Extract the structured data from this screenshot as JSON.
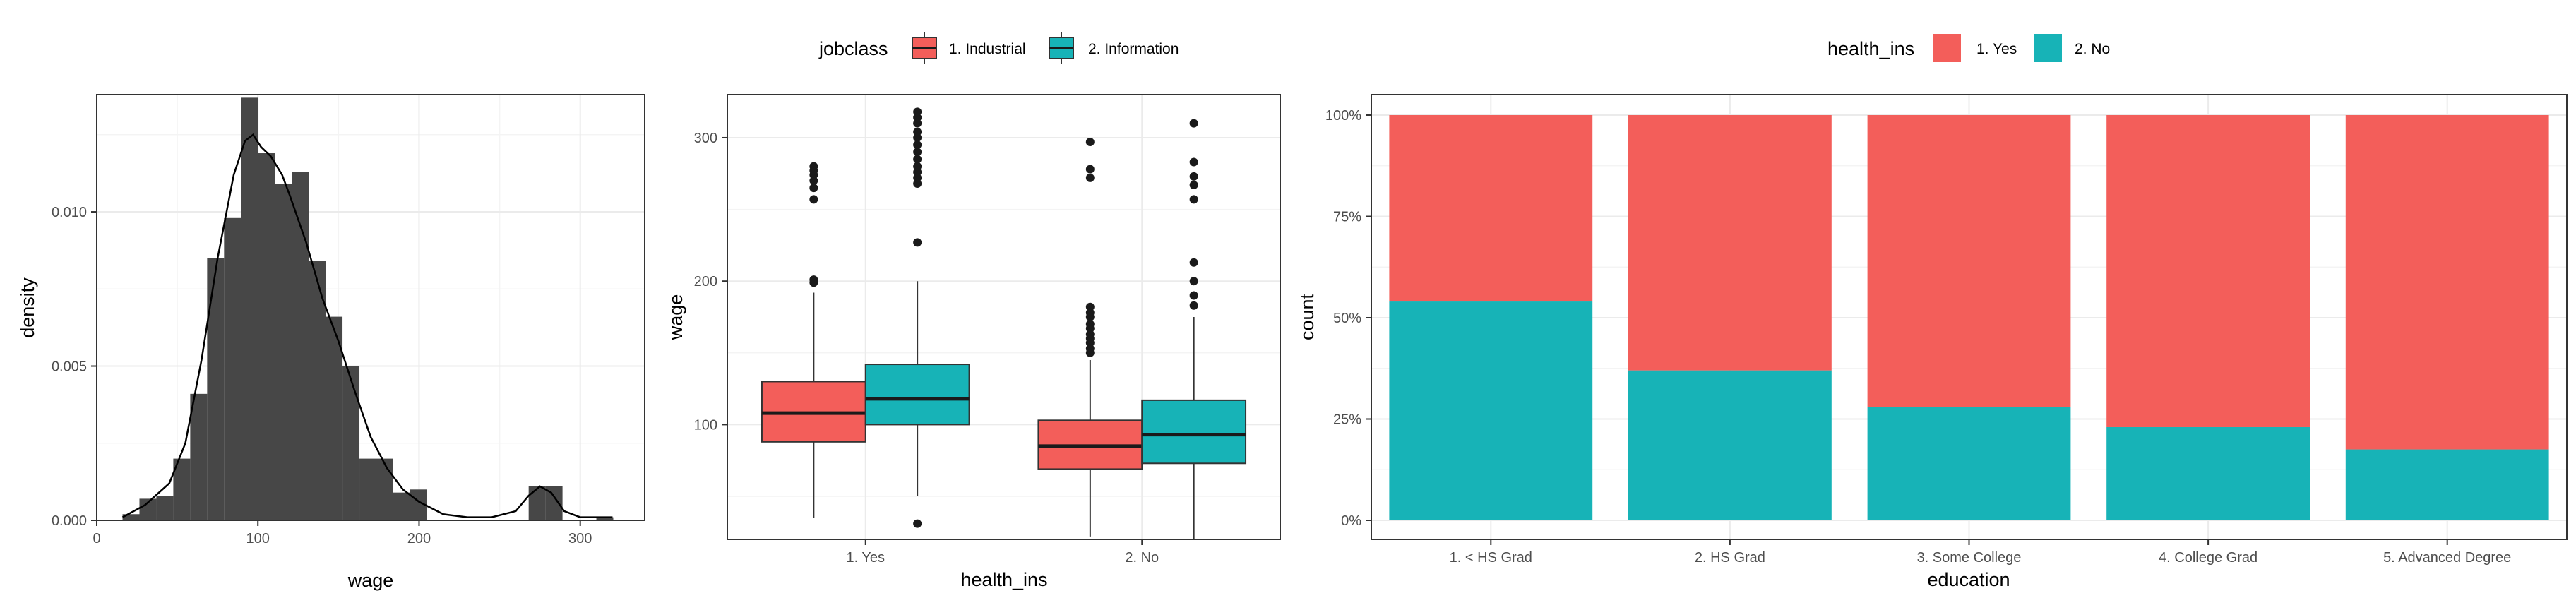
{
  "chart_data": [
    {
      "type": "histogram",
      "xlabel": "wage",
      "ylabel": "density",
      "xlim": [
        0,
        340
      ],
      "ylim": [
        0,
        0.0138
      ],
      "x_ticks": [
        0,
        100,
        200,
        300
      ],
      "x_tick_labels": [
        "0",
        "100",
        "200",
        "300"
      ],
      "y_ticks": [
        0,
        0.005,
        0.01
      ],
      "y_tick_labels": [
        "0.000",
        "0.005",
        "0.010"
      ],
      "grid": true,
      "colors": {
        "bar": "#474747",
        "density_line": "#000000",
        "panel_border": "#333333",
        "grid": "#ebebeb"
      },
      "bin_width": 10.5,
      "bins": [
        {
          "x0": 16,
          "x1": 26.5,
          "density": 0.0002
        },
        {
          "x0": 26.5,
          "x1": 37,
          "density": 0.0007
        },
        {
          "x0": 37,
          "x1": 47.5,
          "density": 0.0008
        },
        {
          "x0": 47.5,
          "x1": 58,
          "density": 0.002
        },
        {
          "x0": 58,
          "x1": 68.5,
          "density": 0.0041
        },
        {
          "x0": 68.5,
          "x1": 79,
          "density": 0.0085
        },
        {
          "x0": 79,
          "x1": 89.5,
          "density": 0.0098
        },
        {
          "x0": 89.5,
          "x1": 100,
          "density": 0.0137
        },
        {
          "x0": 100,
          "x1": 110.5,
          "density": 0.0119
        },
        {
          "x0": 110.5,
          "x1": 121,
          "density": 0.0109
        },
        {
          "x0": 121,
          "x1": 131.5,
          "density": 0.0113
        },
        {
          "x0": 131.5,
          "x1": 142,
          "density": 0.0084
        },
        {
          "x0": 142,
          "x1": 152.5,
          "density": 0.0066
        },
        {
          "x0": 152.5,
          "x1": 163,
          "density": 0.005
        },
        {
          "x0": 163,
          "x1": 173.5,
          "density": 0.002
        },
        {
          "x0": 173.5,
          "x1": 184,
          "density": 0.002
        },
        {
          "x0": 184,
          "x1": 194.5,
          "density": 0.0009
        },
        {
          "x0": 194.5,
          "x1": 205,
          "density": 0.001
        },
        {
          "x0": 268,
          "x1": 278.5,
          "density": 0.0011
        },
        {
          "x0": 278.5,
          "x1": 289,
          "density": 0.0011
        },
        {
          "x0": 310,
          "x1": 320.5,
          "density": 0.0001
        }
      ],
      "density_curve": {
        "x": [
          16,
          30,
          45,
          55,
          65,
          75,
          85,
          92,
          97,
          102,
          108,
          115,
          120,
          130,
          140,
          150,
          160,
          170,
          180,
          190,
          200,
          215,
          230,
          245,
          260,
          268,
          275,
          282,
          290,
          300,
          310,
          320
        ],
        "y": [
          0.0001,
          0.0005,
          0.0012,
          0.0025,
          0.0052,
          0.0085,
          0.0112,
          0.0123,
          0.0125,
          0.0121,
          0.0118,
          0.0112,
          0.0105,
          0.009,
          0.0072,
          0.0058,
          0.0042,
          0.0027,
          0.0017,
          0.001,
          0.0006,
          0.0002,
          0.0001,
          0.0001,
          0.0003,
          0.0008,
          0.0011,
          0.0009,
          0.0003,
          0.0001,
          0.0001,
          0.0001
        ]
      }
    },
    {
      "type": "boxplot",
      "xlabel": "health_ins",
      "ylabel": "wage",
      "categories": [
        "1. Yes",
        "2. No"
      ],
      "ylim": [
        20,
        330
      ],
      "y_ticks": [
        100,
        200,
        300
      ],
      "y_tick_labels": [
        "100",
        "200",
        "300"
      ],
      "grid": true,
      "legend": {
        "title": "jobclass",
        "position": "top"
      },
      "series": [
        {
          "name": "1. Industrial",
          "color": "#f35e5a",
          "boxes": [
            {
              "category": "1. Yes",
              "whisker_low": 35,
              "q1": 88,
              "median": 108,
              "q3": 130,
              "whisker_high": 192,
              "outliers": [
                199,
                201,
                257,
                265,
                270,
                274,
                277,
                280
              ]
            },
            {
              "category": "2. No",
              "whisker_low": 22,
              "q1": 69,
              "median": 85,
              "q3": 103,
              "whisker_high": 145,
              "outliers": [
                150,
                153,
                157,
                160,
                163,
                167,
                170,
                175,
                178,
                182,
                272,
                278,
                297
              ]
            }
          ]
        },
        {
          "name": "2. Information",
          "color": "#17b3b7",
          "boxes": [
            {
              "category": "1. Yes",
              "whisker_low": 50,
              "q1": 100,
              "median": 118,
              "q3": 142,
              "whisker_high": 200,
              "outliers": [
                31,
                227,
                268,
                272,
                276,
                280,
                285,
                290,
                295,
                300,
                304,
                310,
                314,
                318
              ]
            },
            {
              "category": "2. No",
              "whisker_low": 20,
              "q1": 73,
              "median": 93,
              "q3": 117,
              "whisker_high": 175,
              "outliers": [
                183,
                190,
                200,
                213,
                257,
                267,
                273,
                283,
                310
              ]
            }
          ]
        }
      ]
    },
    {
      "type": "bar",
      "stacked": "fill",
      "xlabel": "education",
      "ylabel": "count",
      "categories": [
        "1. < HS Grad",
        "2. HS Grad",
        "3. Some College",
        "4. College Grad",
        "5. Advanced Degree"
      ],
      "ylim": [
        0,
        1
      ],
      "y_ticks": [
        0,
        0.25,
        0.5,
        0.75,
        1
      ],
      "y_tick_labels": [
        "0%",
        "25%",
        "50%",
        "75%",
        "100%"
      ],
      "grid": true,
      "legend": {
        "title": "health_ins",
        "position": "top"
      },
      "series": [
        {
          "name": "1. Yes",
          "color": "#f35e5a",
          "values": [
            0.46,
            0.63,
            0.72,
            0.77,
            0.825
          ]
        },
        {
          "name": "2. No",
          "color": "#17b3b7",
          "values": [
            0.54,
            0.37,
            0.28,
            0.23,
            0.175
          ]
        }
      ]
    }
  ]
}
